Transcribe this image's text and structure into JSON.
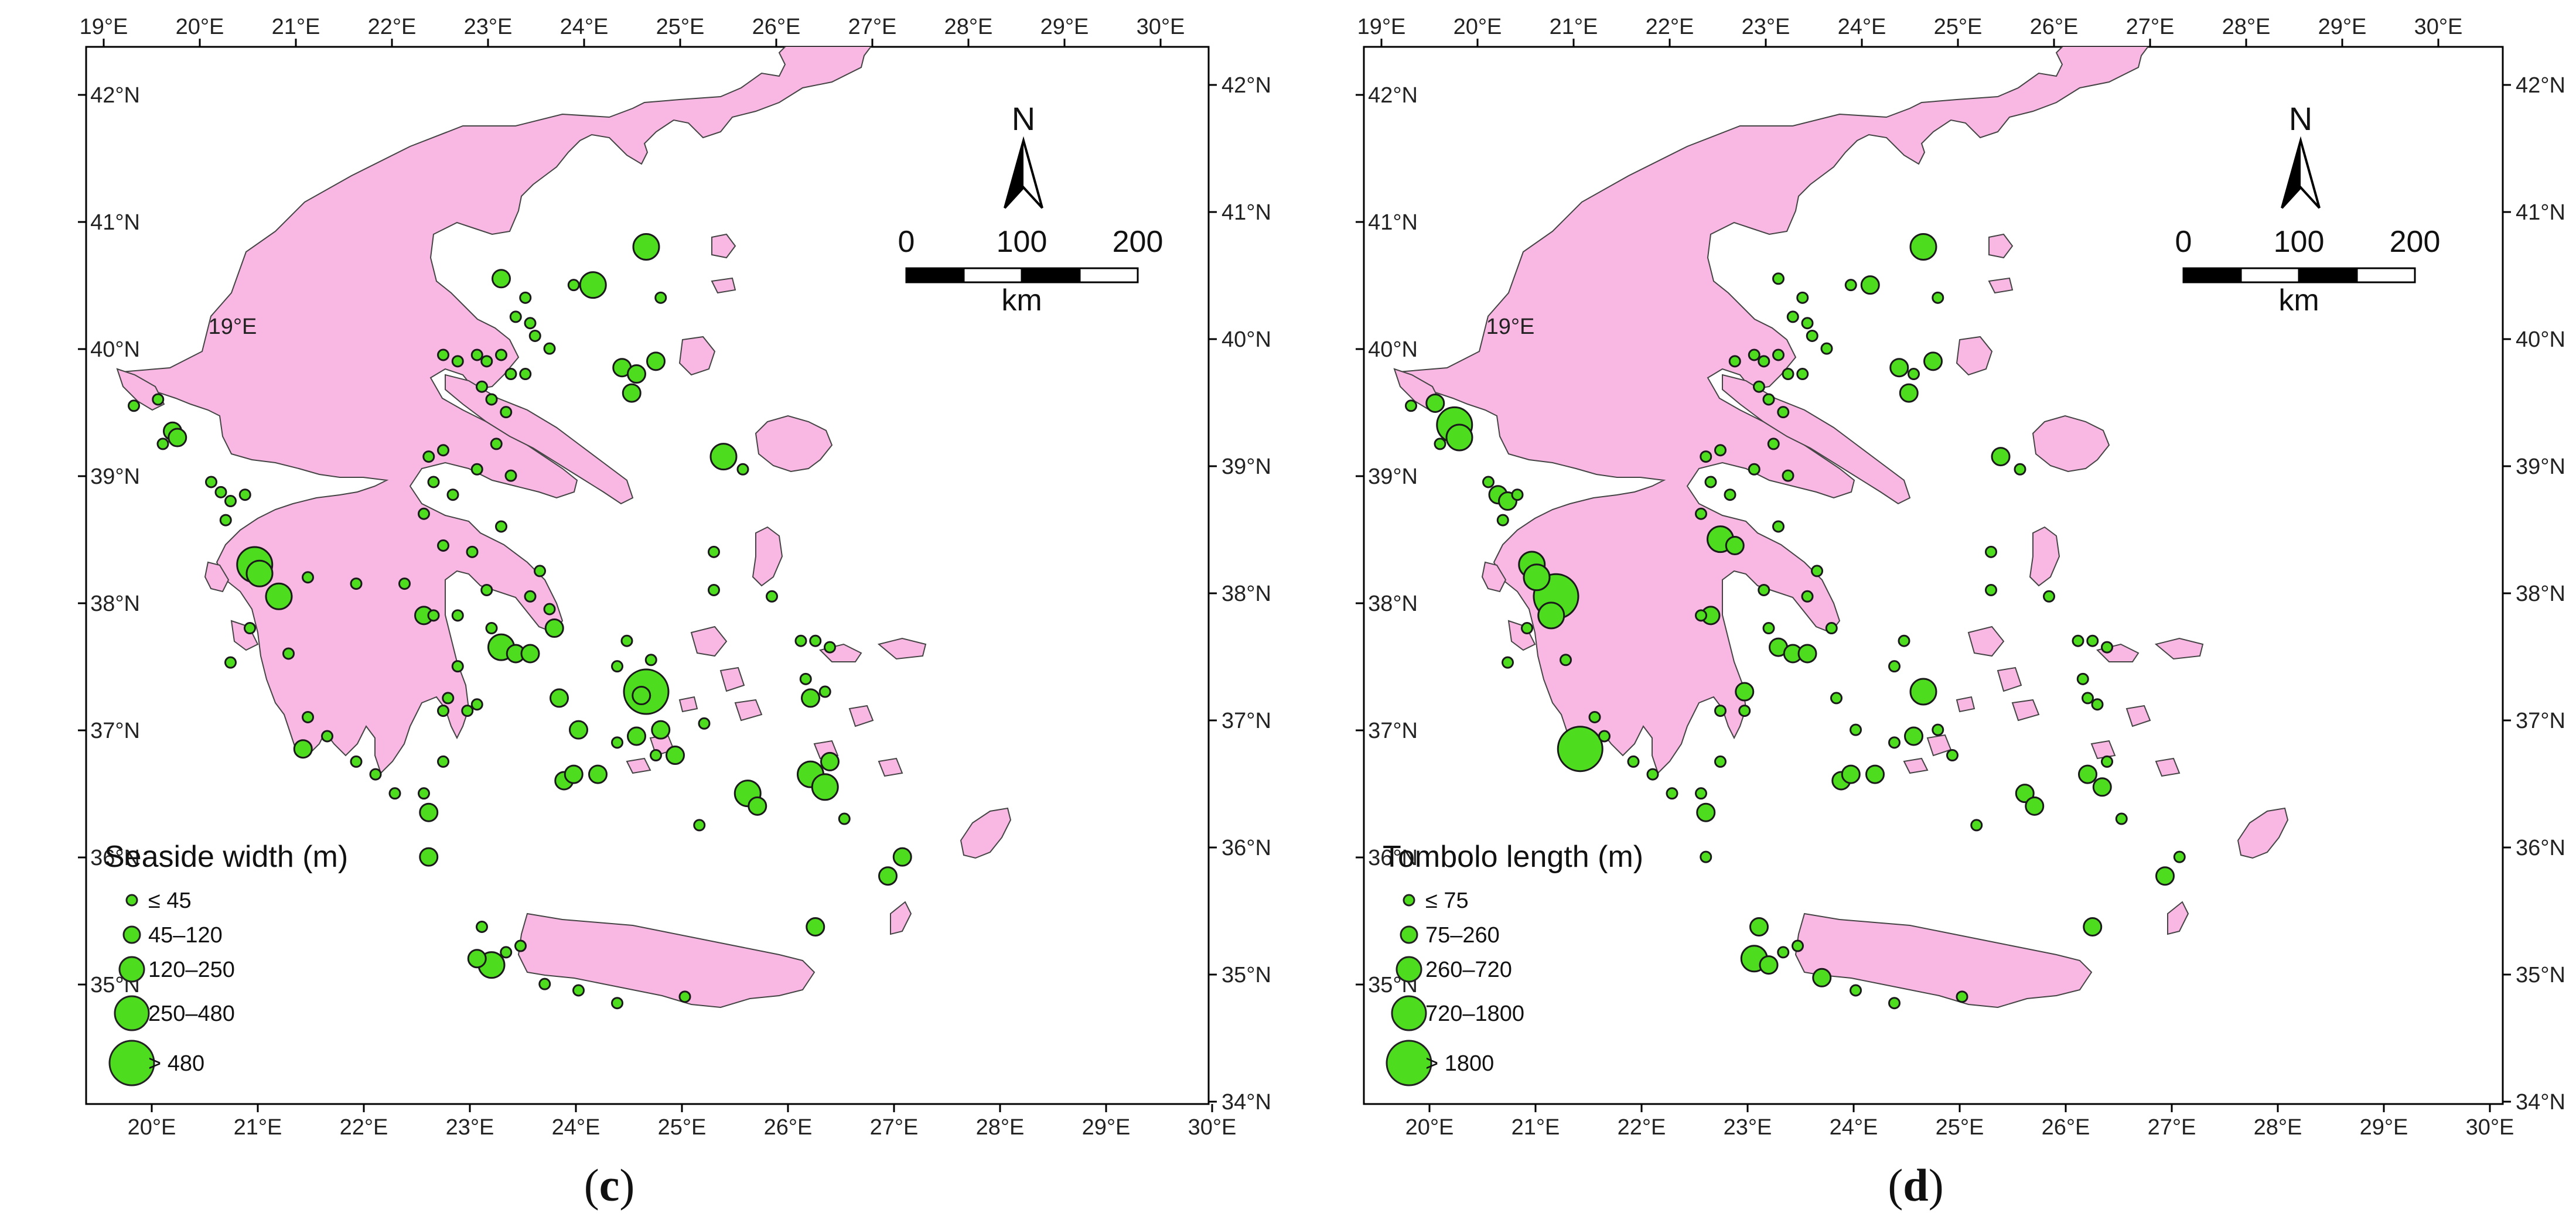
{
  "maps": [
    {
      "id": "c",
      "label_letter": "c",
      "legend_title": "Seaside width (m)",
      "legend": [
        "≤ 45",
        "45–120",
        "120–250",
        "250–480",
        "> 480"
      ]
    },
    {
      "id": "d",
      "label_letter": "d",
      "legend_title": "Tombolo length (m)",
      "legend": [
        "≤ 75",
        "75–260",
        "260–720",
        "720–1800",
        "> 1800"
      ]
    }
  ],
  "axes": {
    "top_lon": [
      "19°E",
      "20°E",
      "21°E",
      "22°E",
      "23°E",
      "24°E",
      "25°E",
      "26°E",
      "27°E",
      "28°E",
      "29°E",
      "30°E"
    ],
    "bottom_lon": [
      "20°E",
      "21°E",
      "22°E",
      "23°E",
      "24°E",
      "25°E",
      "26°E",
      "27°E",
      "28°E",
      "29°E",
      "30°E"
    ],
    "left_lat": [
      "42°N",
      "41°N",
      "40°N",
      "39°N",
      "38°N",
      "37°N",
      "36°N",
      "35°N"
    ],
    "right_lat": [
      "42°N",
      "41°N",
      "40°N",
      "39°N",
      "38°N",
      "37°N",
      "36°N",
      "35°N",
      "34°N"
    ],
    "corner_lon": "19°E"
  },
  "scale_bar": {
    "labels": [
      "0",
      "100",
      "200"
    ],
    "unit": "km"
  },
  "north": "N",
  "colors": {
    "land": "#F9B7E3",
    "marker": "#4EDD1E",
    "outline": "#444444",
    "frame": "#000000"
  },
  "markers_c": [
    [
      20.0,
      39.6,
      1
    ],
    [
      20.25,
      39.65,
      1
    ],
    [
      20.4,
      39.4,
      2
    ],
    [
      20.45,
      39.35,
      2
    ],
    [
      20.3,
      39.3,
      1
    ],
    [
      20.8,
      39.0,
      1
    ],
    [
      20.9,
      38.92,
      1
    ],
    [
      21.0,
      38.85,
      1
    ],
    [
      20.95,
      38.7,
      1
    ],
    [
      21.15,
      38.9,
      1
    ],
    [
      21.25,
      38.35,
      4
    ],
    [
      21.3,
      38.28,
      3
    ],
    [
      21.5,
      38.1,
      3
    ],
    [
      21.2,
      37.85,
      1
    ],
    [
      21.6,
      37.65,
      1
    ],
    [
      21.0,
      37.58,
      1
    ],
    [
      21.8,
      37.15,
      1
    ],
    [
      21.75,
      36.9,
      2
    ],
    [
      22.3,
      36.8,
      1
    ],
    [
      22.5,
      36.7,
      1
    ],
    [
      22.7,
      36.55,
      1
    ],
    [
      23.0,
      36.55,
      1
    ],
    [
      23.05,
      36.4,
      2
    ],
    [
      23.05,
      36.05,
      2
    ],
    [
      23.2,
      36.8,
      1
    ],
    [
      23.2,
      37.2,
      1
    ],
    [
      23.25,
      37.3,
      1
    ],
    [
      23.45,
      37.2,
      1
    ],
    [
      23.1,
      37.95,
      1
    ],
    [
      23.0,
      37.95,
      2
    ],
    [
      23.35,
      37.55,
      1
    ],
    [
      23.7,
      37.85,
      1
    ],
    [
      23.8,
      37.7,
      3
    ],
    [
      23.95,
      37.65,
      2
    ],
    [
      24.1,
      37.65,
      2
    ],
    [
      24.35,
      37.85,
      2
    ],
    [
      23.55,
      37.25,
      1
    ],
    [
      23.35,
      37.95,
      1
    ],
    [
      22.3,
      38.2,
      1
    ],
    [
      21.8,
      38.25,
      1
    ],
    [
      22.8,
      38.2,
      1
    ],
    [
      23.2,
      38.5,
      1
    ],
    [
      23.5,
      38.45,
      1
    ],
    [
      23.65,
      38.15,
      1
    ],
    [
      24.1,
      38.1,
      1
    ],
    [
      24.2,
      38.3,
      1
    ],
    [
      23.8,
      38.65,
      1
    ],
    [
      23.3,
      38.9,
      1
    ],
    [
      23.0,
      38.75,
      1
    ],
    [
      23.05,
      39.2,
      1
    ],
    [
      23.2,
      39.25,
      1
    ],
    [
      23.1,
      39.0,
      1
    ],
    [
      23.55,
      39.1,
      1
    ],
    [
      23.9,
      39.05,
      1
    ],
    [
      23.75,
      39.3,
      1
    ],
    [
      23.85,
      39.55,
      1
    ],
    [
      23.6,
      39.75,
      1
    ],
    [
      23.7,
      39.65,
      1
    ],
    [
      23.9,
      39.85,
      1
    ],
    [
      23.8,
      40.0,
      1
    ],
    [
      23.65,
      39.95,
      1
    ],
    [
      24.05,
      39.85,
      1
    ],
    [
      24.15,
      40.15,
      1
    ],
    [
      24.3,
      40.05,
      1
    ],
    [
      23.95,
      40.3,
      1
    ],
    [
      24.1,
      40.25,
      1
    ],
    [
      24.05,
      40.45,
      1
    ],
    [
      23.55,
      40.0,
      1
    ],
    [
      23.35,
      39.95,
      1
    ],
    [
      23.2,
      40.0,
      1
    ],
    [
      23.8,
      40.6,
      2
    ],
    [
      24.55,
      40.55,
      1
    ],
    [
      24.75,
      40.55,
      3
    ],
    [
      25.3,
      40.85,
      3
    ],
    [
      25.45,
      40.45,
      1
    ],
    [
      25.05,
      39.9,
      2
    ],
    [
      25.2,
      39.85,
      2
    ],
    [
      25.15,
      39.7,
      2
    ],
    [
      25.4,
      39.95,
      2
    ],
    [
      26.1,
      39.2,
      3
    ],
    [
      26.3,
      39.1,
      1
    ],
    [
      26.0,
      38.45,
      1
    ],
    [
      26.0,
      38.15,
      1
    ],
    [
      26.6,
      38.1,
      1
    ],
    [
      24.4,
      37.3,
      2
    ],
    [
      24.6,
      37.05,
      2
    ],
    [
      25.3,
      37.35,
      5
    ],
    [
      25.25,
      37.32,
      2
    ],
    [
      25.0,
      37.55,
      1
    ],
    [
      25.1,
      37.75,
      1
    ],
    [
      25.35,
      37.6,
      1
    ],
    [
      25.2,
      37.0,
      2
    ],
    [
      25.0,
      36.95,
      1
    ],
    [
      25.45,
      37.05,
      2
    ],
    [
      25.6,
      36.85,
      2
    ],
    [
      25.9,
      37.1,
      1
    ],
    [
      25.4,
      36.85,
      1
    ],
    [
      24.45,
      36.65,
      2
    ],
    [
      24.55,
      36.7,
      2
    ],
    [
      24.8,
      36.7,
      2
    ],
    [
      25.85,
      36.3,
      1
    ],
    [
      26.35,
      36.55,
      3
    ],
    [
      26.45,
      36.45,
      2
    ],
    [
      27.0,
      36.7,
      3
    ],
    [
      27.15,
      36.6,
      3
    ],
    [
      27.2,
      36.8,
      2
    ],
    [
      27.0,
      37.3,
      2
    ],
    [
      27.15,
      37.35,
      1
    ],
    [
      26.95,
      37.45,
      1
    ],
    [
      26.9,
      37.75,
      1
    ],
    [
      27.05,
      37.75,
      1
    ],
    [
      27.2,
      37.7,
      1
    ],
    [
      27.35,
      36.35,
      1
    ],
    [
      27.95,
      36.05,
      2
    ],
    [
      27.8,
      35.9,
      2
    ],
    [
      27.05,
      35.5,
      2
    ],
    [
      23.6,
      35.5,
      1
    ],
    [
      23.55,
      35.25,
      2
    ],
    [
      23.7,
      35.2,
      3
    ],
    [
      23.85,
      35.3,
      1
    ],
    [
      24.0,
      35.35,
      1
    ],
    [
      24.25,
      35.05,
      1
    ],
    [
      24.6,
      35.0,
      1
    ],
    [
      25.0,
      34.9,
      1
    ],
    [
      25.7,
      34.95,
      1
    ],
    [
      24.3,
      38.0,
      1
    ],
    [
      22.0,
      37.0,
      1
    ]
  ],
  "markers_d": [
    [
      20.0,
      39.6,
      1
    ],
    [
      20.25,
      39.62,
      2
    ],
    [
      20.45,
      39.45,
      4
    ],
    [
      20.5,
      39.35,
      3
    ],
    [
      20.3,
      39.3,
      1
    ],
    [
      20.8,
      39.0,
      1
    ],
    [
      20.9,
      38.9,
      2
    ],
    [
      21.0,
      38.85,
      2
    ],
    [
      21.1,
      38.9,
      1
    ],
    [
      20.95,
      38.7,
      1
    ],
    [
      21.25,
      38.35,
      3
    ],
    [
      21.3,
      38.25,
      3
    ],
    [
      21.5,
      38.1,
      5
    ],
    [
      21.45,
      37.95,
      3
    ],
    [
      21.2,
      37.85,
      1
    ],
    [
      21.6,
      37.6,
      1
    ],
    [
      21.0,
      37.58,
      1
    ],
    [
      21.75,
      36.9,
      5
    ],
    [
      21.9,
      37.15,
      1
    ],
    [
      22.3,
      36.8,
      1
    ],
    [
      22.5,
      36.7,
      1
    ],
    [
      22.7,
      36.55,
      1
    ],
    [
      23.0,
      36.55,
      1
    ],
    [
      23.05,
      36.4,
      2
    ],
    [
      23.05,
      36.05,
      1
    ],
    [
      23.2,
      36.8,
      1
    ],
    [
      23.2,
      37.2,
      1
    ],
    [
      23.45,
      37.2,
      1
    ],
    [
      23.1,
      37.95,
      2
    ],
    [
      23.0,
      37.95,
      1
    ],
    [
      23.45,
      37.35,
      2
    ],
    [
      23.7,
      37.85,
      1
    ],
    [
      23.8,
      37.7,
      2
    ],
    [
      23.95,
      37.65,
      2
    ],
    [
      24.1,
      37.65,
      2
    ],
    [
      24.35,
      37.85,
      1
    ],
    [
      23.2,
      38.55,
      3
    ],
    [
      23.35,
      38.5,
      2
    ],
    [
      23.65,
      38.15,
      1
    ],
    [
      24.1,
      38.1,
      1
    ],
    [
      24.2,
      38.3,
      1
    ],
    [
      23.8,
      38.65,
      1
    ],
    [
      23.3,
      38.9,
      1
    ],
    [
      23.0,
      38.75,
      1
    ],
    [
      23.05,
      39.2,
      1
    ],
    [
      23.2,
      39.25,
      1
    ],
    [
      23.1,
      39.0,
      1
    ],
    [
      23.55,
      39.1,
      1
    ],
    [
      23.9,
      39.05,
      1
    ],
    [
      23.75,
      39.3,
      1
    ],
    [
      23.85,
      39.55,
      1
    ],
    [
      23.6,
      39.75,
      1
    ],
    [
      23.7,
      39.65,
      1
    ],
    [
      23.9,
      39.85,
      1
    ],
    [
      23.8,
      40.0,
      1
    ],
    [
      23.65,
      39.95,
      1
    ],
    [
      24.05,
      39.85,
      1
    ],
    [
      24.15,
      40.15,
      1
    ],
    [
      24.3,
      40.05,
      1
    ],
    [
      23.95,
      40.3,
      1
    ],
    [
      24.1,
      40.25,
      1
    ],
    [
      24.05,
      40.45,
      1
    ],
    [
      23.55,
      40.0,
      1
    ],
    [
      23.35,
      39.95,
      1
    ],
    [
      23.8,
      40.6,
      1
    ],
    [
      24.55,
      40.55,
      1
    ],
    [
      24.75,
      40.55,
      2
    ],
    [
      25.3,
      40.85,
      3
    ],
    [
      25.45,
      40.45,
      1
    ],
    [
      25.05,
      39.9,
      2
    ],
    [
      25.2,
      39.85,
      1
    ],
    [
      25.15,
      39.7,
      2
    ],
    [
      25.4,
      39.95,
      2
    ],
    [
      26.1,
      39.2,
      2
    ],
    [
      26.3,
      39.1,
      1
    ],
    [
      26.0,
      38.45,
      1
    ],
    [
      26.0,
      38.15,
      1
    ],
    [
      26.6,
      38.1,
      1
    ],
    [
      24.4,
      37.3,
      1
    ],
    [
      24.6,
      37.05,
      1
    ],
    [
      25.3,
      37.35,
      3
    ],
    [
      25.0,
      37.55,
      1
    ],
    [
      25.1,
      37.75,
      1
    ],
    [
      25.2,
      37.0,
      2
    ],
    [
      25.0,
      36.95,
      1
    ],
    [
      25.45,
      37.05,
      1
    ],
    [
      25.6,
      36.85,
      1
    ],
    [
      24.45,
      36.65,
      2
    ],
    [
      24.55,
      36.7,
      2
    ],
    [
      24.8,
      36.7,
      2
    ],
    [
      25.85,
      36.3,
      1
    ],
    [
      26.35,
      36.55,
      2
    ],
    [
      26.45,
      36.45,
      2
    ],
    [
      27.0,
      36.7,
      2
    ],
    [
      27.15,
      36.6,
      2
    ],
    [
      27.2,
      36.8,
      1
    ],
    [
      27.0,
      37.3,
      1
    ],
    [
      27.1,
      37.25,
      1
    ],
    [
      26.95,
      37.45,
      1
    ],
    [
      26.9,
      37.75,
      1
    ],
    [
      27.05,
      37.75,
      1
    ],
    [
      27.2,
      37.7,
      1
    ],
    [
      27.35,
      36.35,
      1
    ],
    [
      27.95,
      36.05,
      1
    ],
    [
      27.8,
      35.9,
      2
    ],
    [
      27.05,
      35.5,
      2
    ],
    [
      23.6,
      35.5,
      2
    ],
    [
      23.55,
      35.25,
      3
    ],
    [
      23.7,
      35.2,
      2
    ],
    [
      23.85,
      35.3,
      1
    ],
    [
      24.0,
      35.35,
      1
    ],
    [
      24.25,
      35.1,
      2
    ],
    [
      24.6,
      35.0,
      1
    ],
    [
      25.0,
      34.9,
      1
    ],
    [
      25.7,
      34.95,
      1
    ],
    [
      22.0,
      37.0,
      1
    ]
  ]
}
